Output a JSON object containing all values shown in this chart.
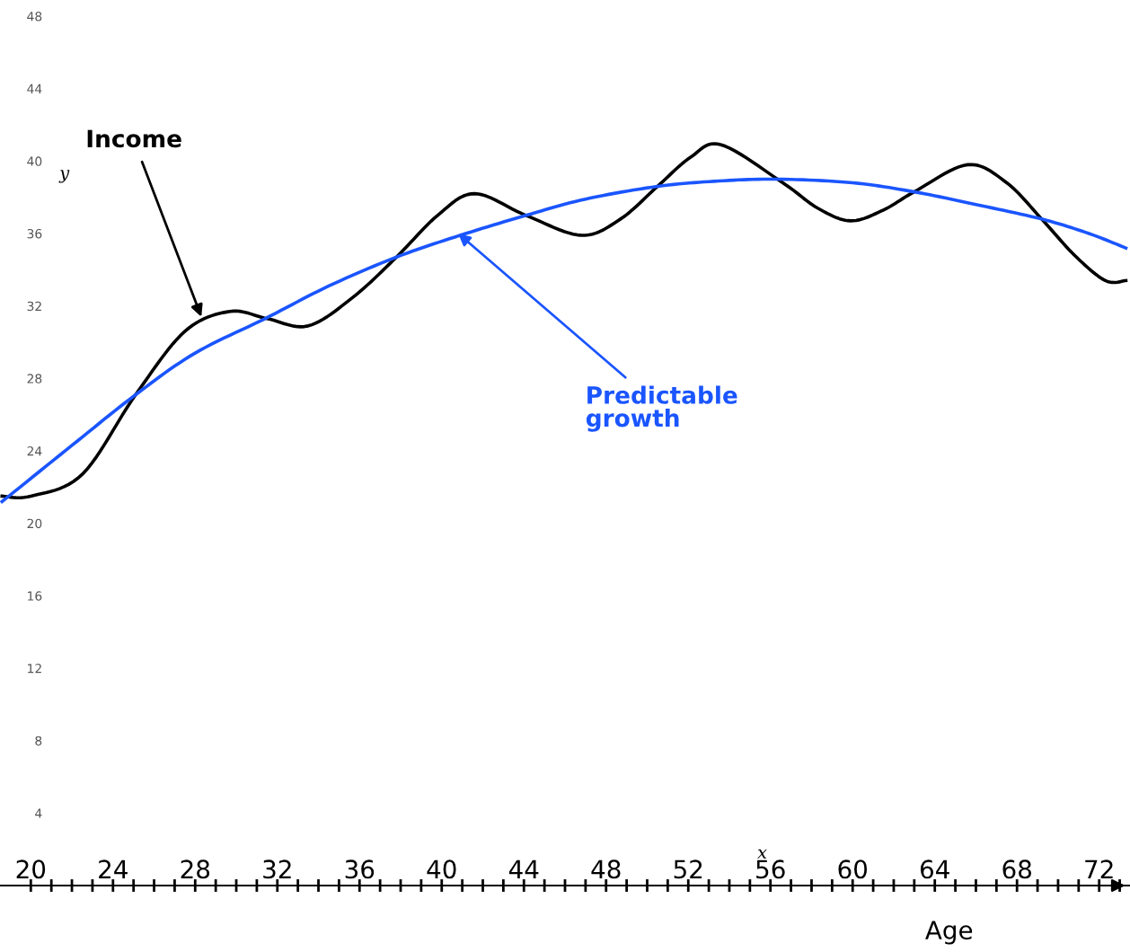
{
  "chart_data": {
    "type": "line",
    "xlabel": "x",
    "ylabel": "y",
    "xlim": [
      18.5,
      73.5
    ],
    "ylim": [
      0,
      48
    ],
    "xticks": [
      20,
      {
        "value": 21,
        "label": null
      },
      {
        "value": 22,
        "label": null
      },
      {
        "value": 23,
        "label": null
      },
      24,
      {
        "value": 25,
        "label": null
      },
      {
        "value": 26,
        "label": null
      },
      {
        "value": 27,
        "label": null
      },
      28,
      {
        "value": 29,
        "label": null
      },
      {
        "value": 30,
        "label": null
      },
      {
        "value": 31,
        "label": null
      },
      32,
      {
        "value": 33,
        "label": null
      },
      {
        "value": 34,
        "label": null
      },
      {
        "value": 35,
        "label": null
      },
      36,
      {
        "value": 37,
        "label": null
      },
      {
        "value": 38,
        "label": null
      },
      {
        "value": 39,
        "label": null
      },
      40,
      {
        "value": 41,
        "label": null
      },
      {
        "value": 42,
        "label": null
      },
      {
        "value": 43,
        "label": null
      },
      44,
      {
        "value": 45,
        "label": null
      },
      {
        "value": 46,
        "label": null
      },
      {
        "value": 47,
        "label": null
      },
      48,
      {
        "value": 49,
        "label": null
      },
      {
        "value": 50,
        "label": null
      },
      {
        "value": 51,
        "label": null
      },
      52,
      {
        "value": 53,
        "label": null
      },
      {
        "value": 54,
        "label": null
      },
      {
        "value": 55,
        "label": null
      },
      56,
      {
        "value": 57,
        "label": null
      },
      {
        "value": 58,
        "label": null
      },
      {
        "value": 59,
        "label": null
      },
      60,
      {
        "value": 61,
        "label": null
      },
      {
        "value": 62,
        "label": null
      },
      {
        "value": 63,
        "label": null
      },
      64,
      {
        "value": 65,
        "label": null
      },
      {
        "value": 66,
        "label": null
      },
      {
        "value": 67,
        "label": null
      },
      68,
      {
        "value": 69,
        "label": null
      },
      {
        "value": 70,
        "label": null
      },
      {
        "value": 71,
        "label": null
      },
      72,
      {
        "value": 73,
        "label": null
      }
    ],
    "yticks": [
      4,
      8,
      12,
      16,
      20,
      24,
      28,
      32,
      36,
      40,
      44,
      48
    ],
    "grid": false,
    "marker": "none",
    "line_style": "solid",
    "series": [
      {
        "color": "#000000",
        "x": [
          18.6,
          20,
          22.5,
          25.1,
          27.5,
          29.7,
          31.5,
          33.5,
          35.7,
          37.8,
          39.8,
          41.6,
          44.1,
          46.8,
          48.7,
          50.5,
          52.1,
          53.6,
          56.6,
          58.3,
          59.9,
          61.5,
          63.0,
          65.6,
          67.5,
          69.2,
          70.8,
          72.3,
          73.3
        ],
        "values": [
          21.5,
          21.5,
          22.7,
          27.1,
          30.6,
          31.7,
          31.3,
          30.9,
          32.5,
          34.7,
          37.0,
          38.2,
          37.0,
          35.9,
          36.8,
          38.6,
          40.2,
          40.9,
          38.8,
          37.4,
          36.7,
          37.3,
          38.3,
          39.8,
          38.8,
          36.8,
          34.8,
          33.4,
          33.4
        ]
      },
      {
        "color": "#1a55ff",
        "x": [
          18.6,
          22,
          25.1,
          28,
          31.4,
          34.5,
          37.8,
          40.9,
          44.1,
          47,
          50.5,
          53.5,
          56.4,
          60,
          63.0,
          66,
          69.2,
          71.5,
          73.3
        ],
        "values": [
          21.2,
          24.3,
          27.1,
          29.4,
          31.3,
          33.1,
          34.7,
          35.9,
          37.0,
          37.9,
          38.6,
          38.9,
          39.0,
          38.8,
          38.3,
          37.6,
          36.8,
          36.0,
          35.2
        ]
      }
    ],
    "annotations": [
      {
        "text": "Income",
        "x": 28.3,
        "y": 31.4
      },
      {
        "text": "Predictable\ngrowth",
        "x": 40.8,
        "y": 36.0
      },
      "Age"
    ]
  }
}
